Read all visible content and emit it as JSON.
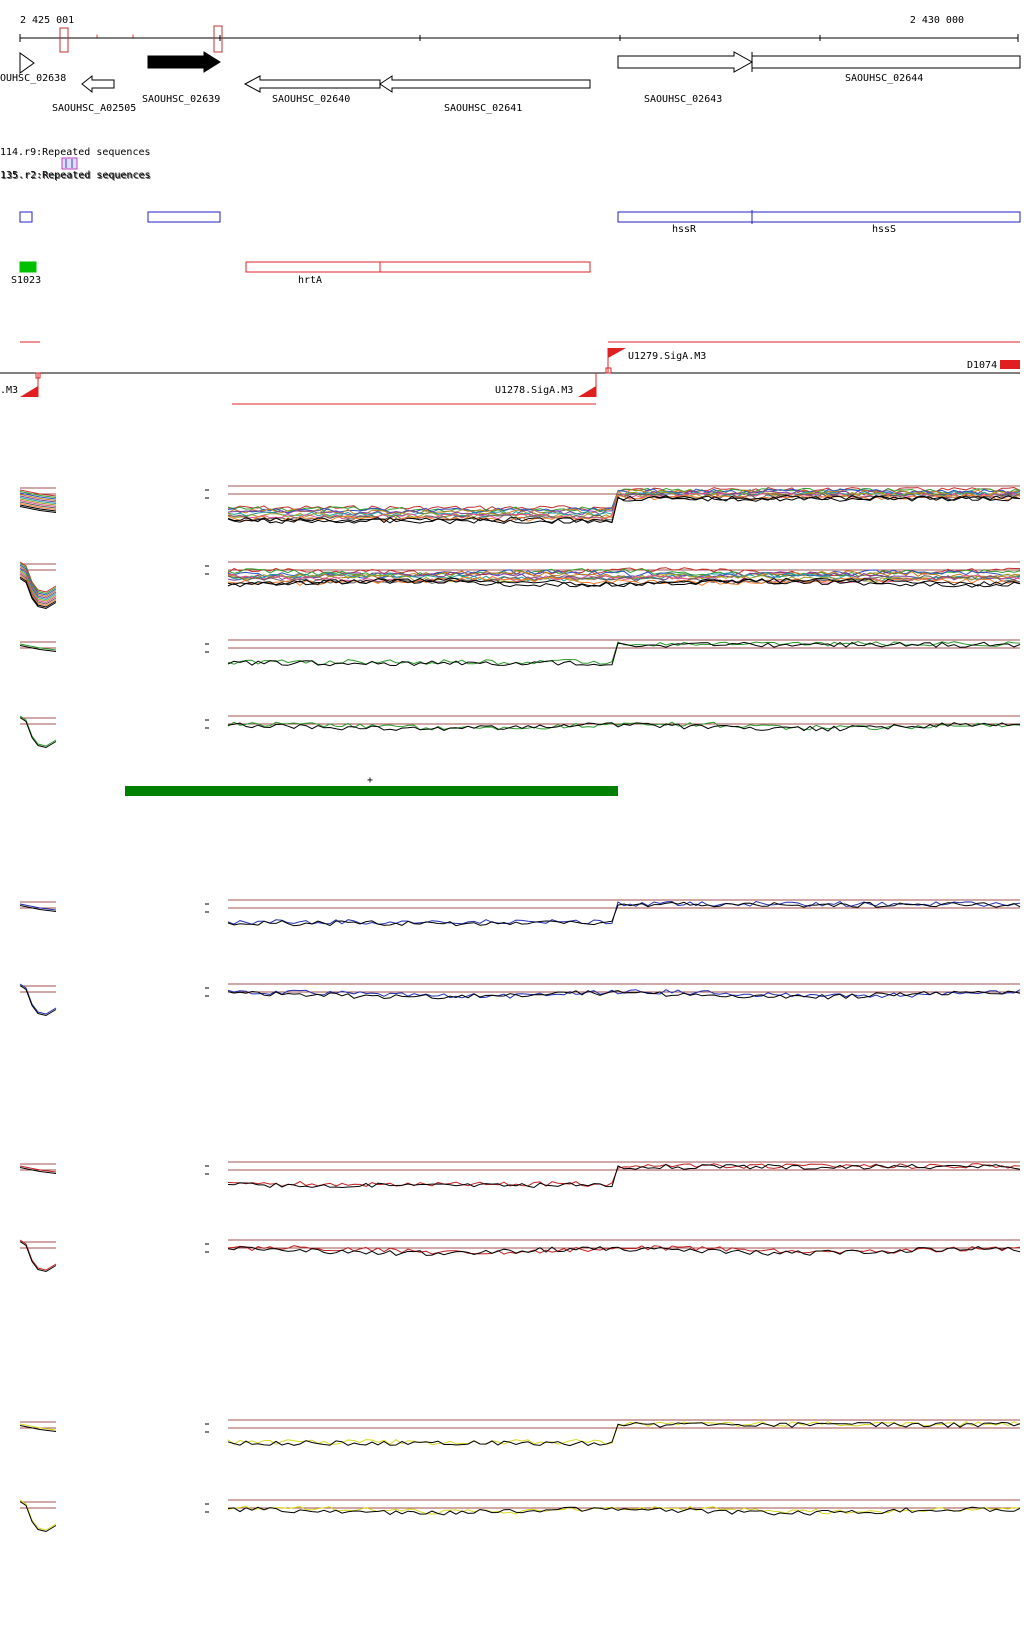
{
  "ruler": {
    "start_label": "2 425 001",
    "end_label": "2 430 000"
  },
  "genes": [
    {
      "label": "OUHSC_02638"
    },
    {
      "label": "SAOUHSC_A02505"
    },
    {
      "label": "SAOUHSC_02639"
    },
    {
      "label": "SAOUHSC_02640"
    },
    {
      "label": "SAOUHSC_02641"
    },
    {
      "label": "SAOUHSC_02643"
    },
    {
      "label": "SAOUHSC_02644"
    }
  ],
  "repeats": [
    {
      "label": "114.r9:Repeated sequences"
    },
    {
      "label": "135.r2:Repeated sequences"
    }
  ],
  "blue_features": [
    {
      "label": ""
    },
    {
      "label": ""
    },
    {
      "label": "hssR"
    },
    {
      "label": "hssS"
    }
  ],
  "red_features": [
    {
      "label": "S1023"
    },
    {
      "label": "hrtA"
    }
  ],
  "promoters": [
    {
      "label": "U1279.SigA.M3"
    },
    {
      "label": "D1074"
    },
    {
      "label": ".M3"
    },
    {
      "label": "U1278.SigA.M3"
    }
  ],
  "green_bar_marker": "+",
  "colors": {
    "gene_stroke": "#000000",
    "gene_filled": "#000000",
    "repeat_box": "#c03030",
    "blue_feature": "#2020c0",
    "red_feature": "#e02020",
    "green_feature": "#00c000",
    "green_bar": "#008000",
    "profile_green": "#2a9a2a",
    "profile_blue": "#2030b0",
    "profile_red": "#c02020",
    "profile_yellow": "#d8d820",
    "threshold": "#a05050"
  }
}
